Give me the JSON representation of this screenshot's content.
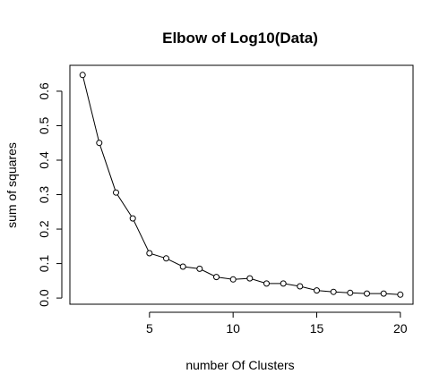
{
  "chart_data": {
    "type": "line",
    "title": "Elbow of Log10(Data)",
    "xlabel": "number Of Clusters",
    "ylabel": "sum of squares",
    "x": [
      1,
      2,
      3,
      4,
      5,
      6,
      7,
      8,
      9,
      10,
      11,
      12,
      13,
      14,
      15,
      16,
      17,
      18,
      19,
      20
    ],
    "series": [
      {
        "values": [
          0.647,
          0.45,
          0.306,
          0.231,
          0.13,
          0.115,
          0.091,
          0.085,
          0.061,
          0.054,
          0.057,
          0.042,
          0.042,
          0.034,
          0.022,
          0.018,
          0.015,
          0.013,
          0.013,
          0.01
        ]
      }
    ],
    "xlim": [
      0.24,
      20.76
    ],
    "ylim": [
      -0.0179,
      0.6751
    ],
    "xticks": [
      5,
      10,
      15,
      20
    ],
    "yticks": [
      0.0,
      0.1,
      0.2,
      0.3,
      0.4,
      0.5,
      0.6
    ],
    "xtick_labels": [
      "5",
      "10",
      "15",
      "20"
    ],
    "ytick_labels": [
      "0.0",
      "0.1",
      "0.2",
      "0.3",
      "0.4",
      "0.5",
      "0.6"
    ],
    "grid": false,
    "legend": "none",
    "marker": "open-circle"
  }
}
